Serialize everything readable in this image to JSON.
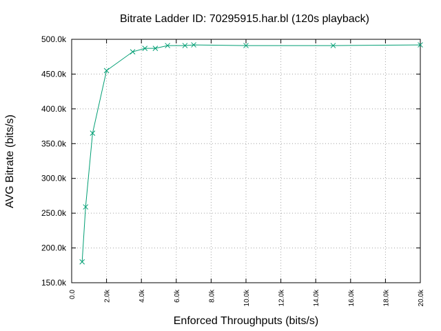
{
  "chart_data": {
    "type": "line",
    "title": "Bitrate Ladder ID: 70295915.har.bl (120s playback)",
    "xlabel": "Enforced Throughputs (bits/s)",
    "ylabel": "AVG Bitrate (bits/s)",
    "xlim": [
      0,
      20000
    ],
    "ylim": [
      150000,
      500000
    ],
    "xticks": [
      0,
      2000,
      4000,
      6000,
      8000,
      10000,
      12000,
      14000,
      16000,
      18000,
      20000
    ],
    "xtick_labels": [
      "0.0",
      "2.0k",
      "4.0k",
      "6.0k",
      "8.0k",
      "10.0k",
      "12.0k",
      "14.0k",
      "16.0k",
      "18.0k",
      "20.0k"
    ],
    "yticks": [
      150000,
      200000,
      250000,
      300000,
      350000,
      400000,
      450000,
      500000
    ],
    "ytick_labels": [
      "150.0k",
      "200.0k",
      "250.0k",
      "300.0k",
      "350.0k",
      "400.0k",
      "450.0k",
      "500.0k"
    ],
    "grid": true,
    "marker": "x",
    "color": "#009e73",
    "series": [
      {
        "x": [
          600,
          800,
          1200,
          2000,
          3500,
          4200,
          4800,
          5500,
          6500,
          7000,
          10000,
          15000,
          20000
        ],
        "y": [
          180000,
          259000,
          365000,
          455000,
          482000,
          487000,
          487000,
          491000,
          491000,
          492000,
          491000,
          491000,
          492000
        ]
      }
    ]
  }
}
